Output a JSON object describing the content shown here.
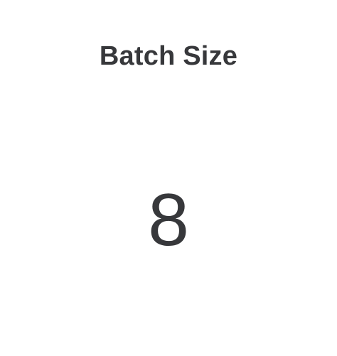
{
  "stat": {
    "title": "Batch Size",
    "value": "8"
  }
}
